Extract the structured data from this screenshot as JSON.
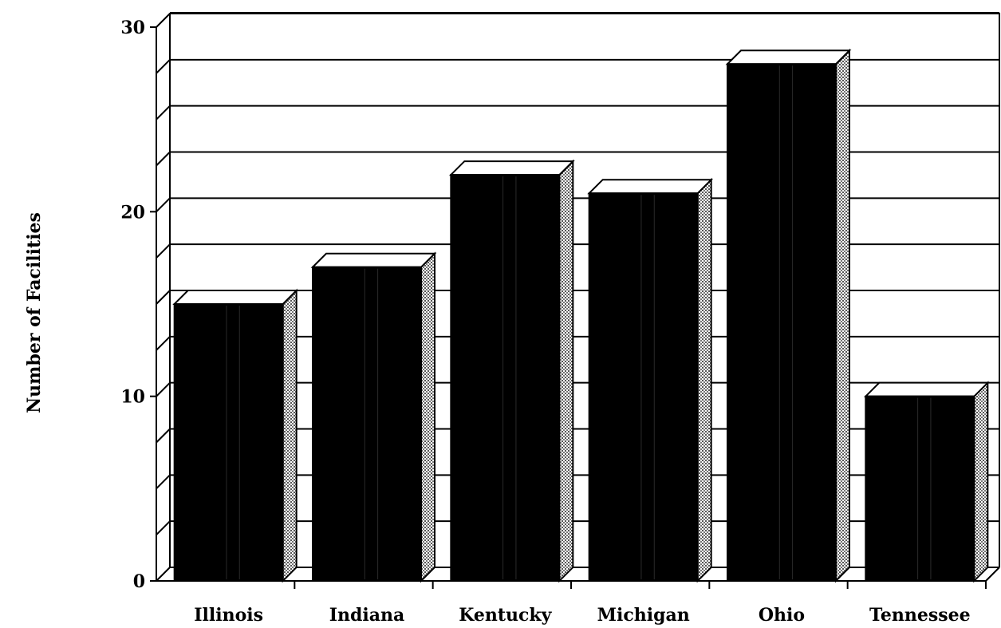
{
  "chart_data": {
    "type": "bar",
    "title": "",
    "xlabel": "",
    "ylabel": "Number of Facilities",
    "categories": [
      "Illinois",
      "Indiana",
      "Kentucky",
      "Michigan",
      "Ohio",
      "Tennessee"
    ],
    "values": [
      15,
      17,
      22,
      21,
      28,
      10
    ],
    "ylim": [
      0,
      30
    ],
    "yticks": [
      "0",
      "10",
      "20",
      "30"
    ],
    "grid": true,
    "style": "3d",
    "colors": {
      "bar_front": "#000000",
      "bar_top": "#ffffff",
      "bar_side": "#bdbdbd",
      "grid": "#000000"
    }
  }
}
